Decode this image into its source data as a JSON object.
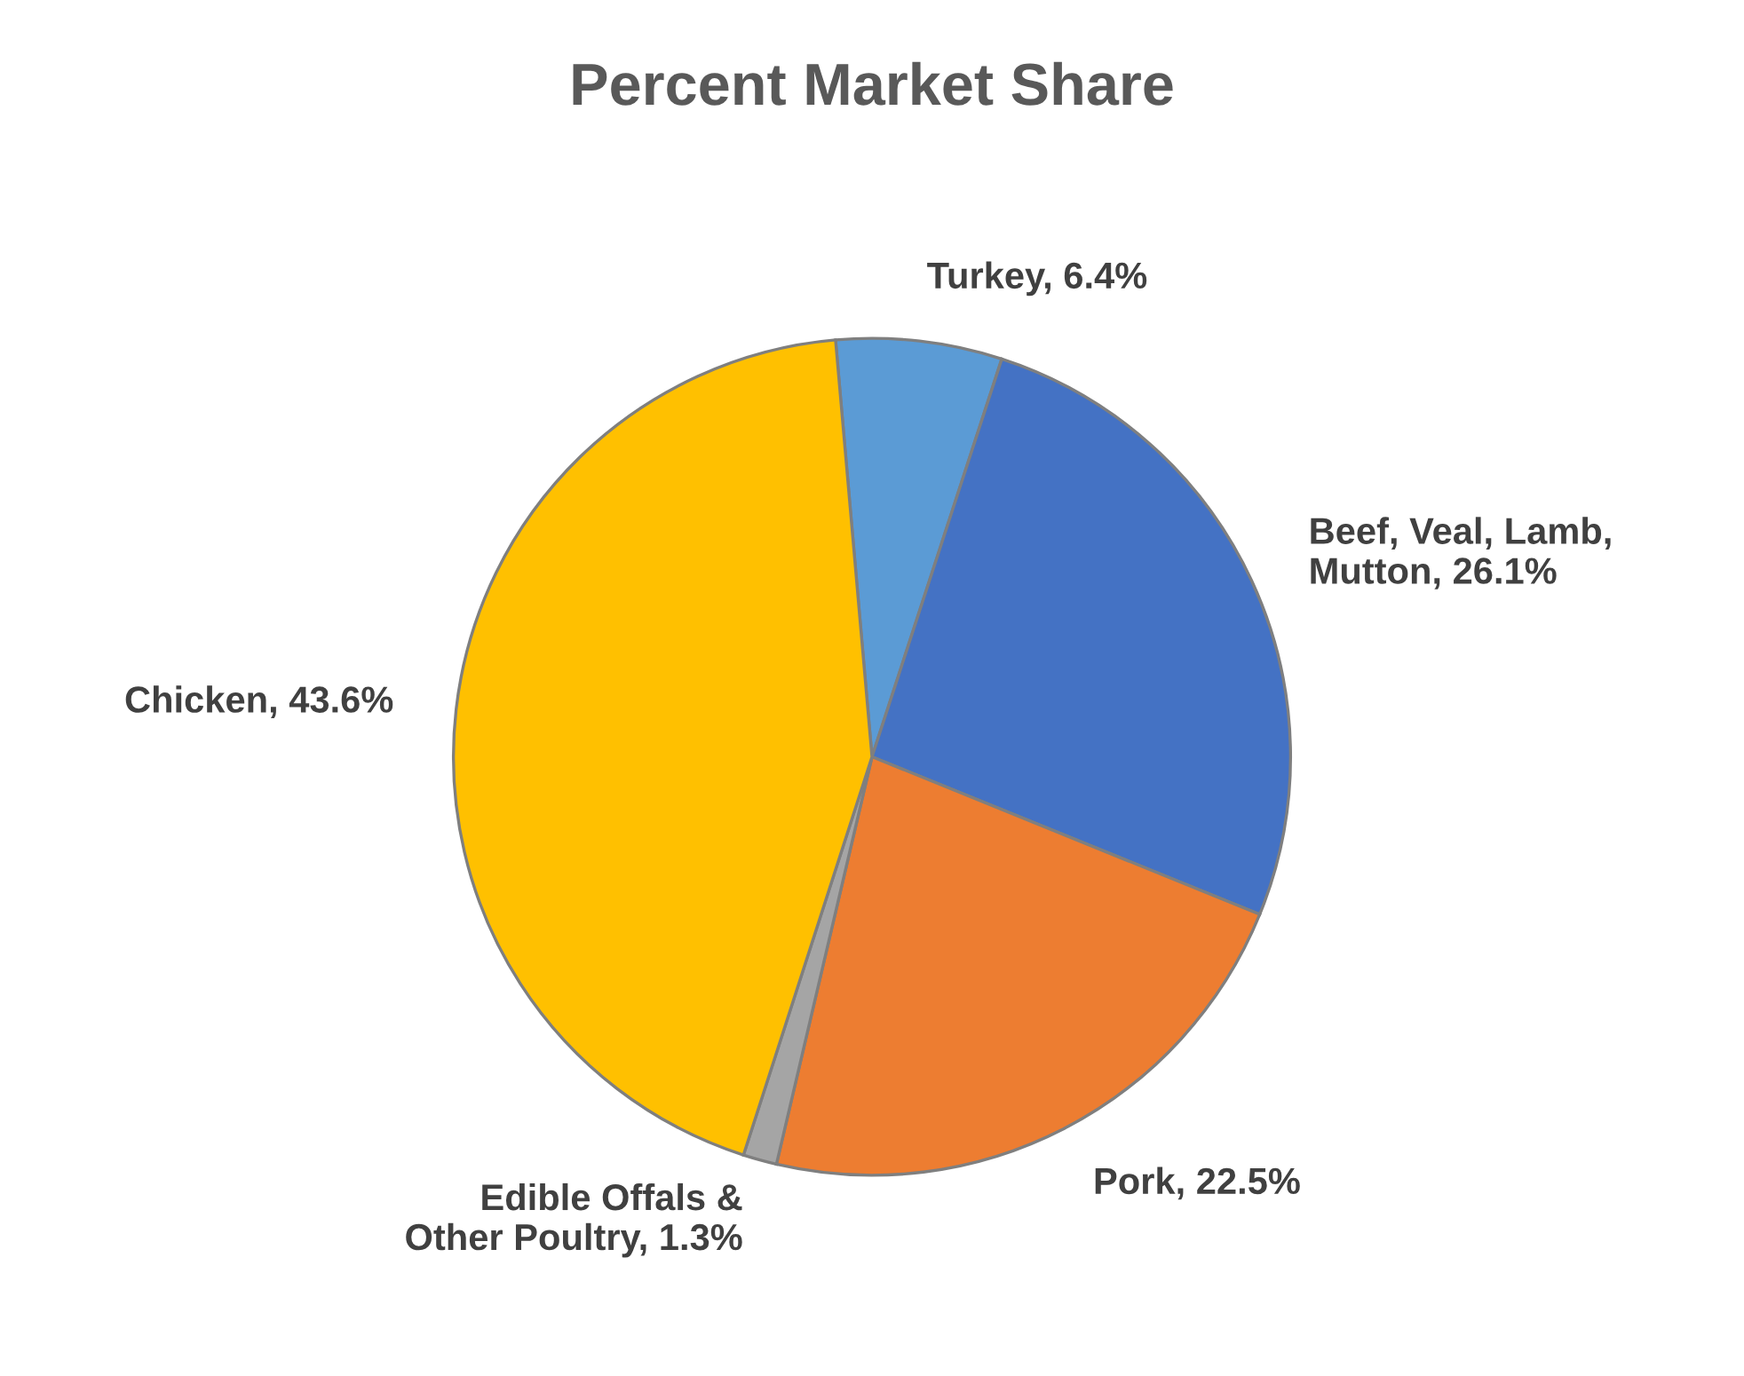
{
  "chart_data": {
    "type": "pie",
    "title": "Percent Market Share",
    "categories": [
      "Turkey",
      "Beef, Veal, Lamb, Mutton",
      "Pork",
      "Edible Offals & Other Poultry",
      "Chicken"
    ],
    "values": [
      6.4,
      26.1,
      22.5,
      1.3,
      43.6
    ],
    "value_labels": [
      "6.4%",
      "26.1%",
      "22.5%",
      "1.3%",
      "43.6%"
    ],
    "colors": [
      "#5b9bd5",
      "#4472c4",
      "#ed7d31",
      "#a5a5a5",
      "#ffc000"
    ],
    "legend": false
  }
}
